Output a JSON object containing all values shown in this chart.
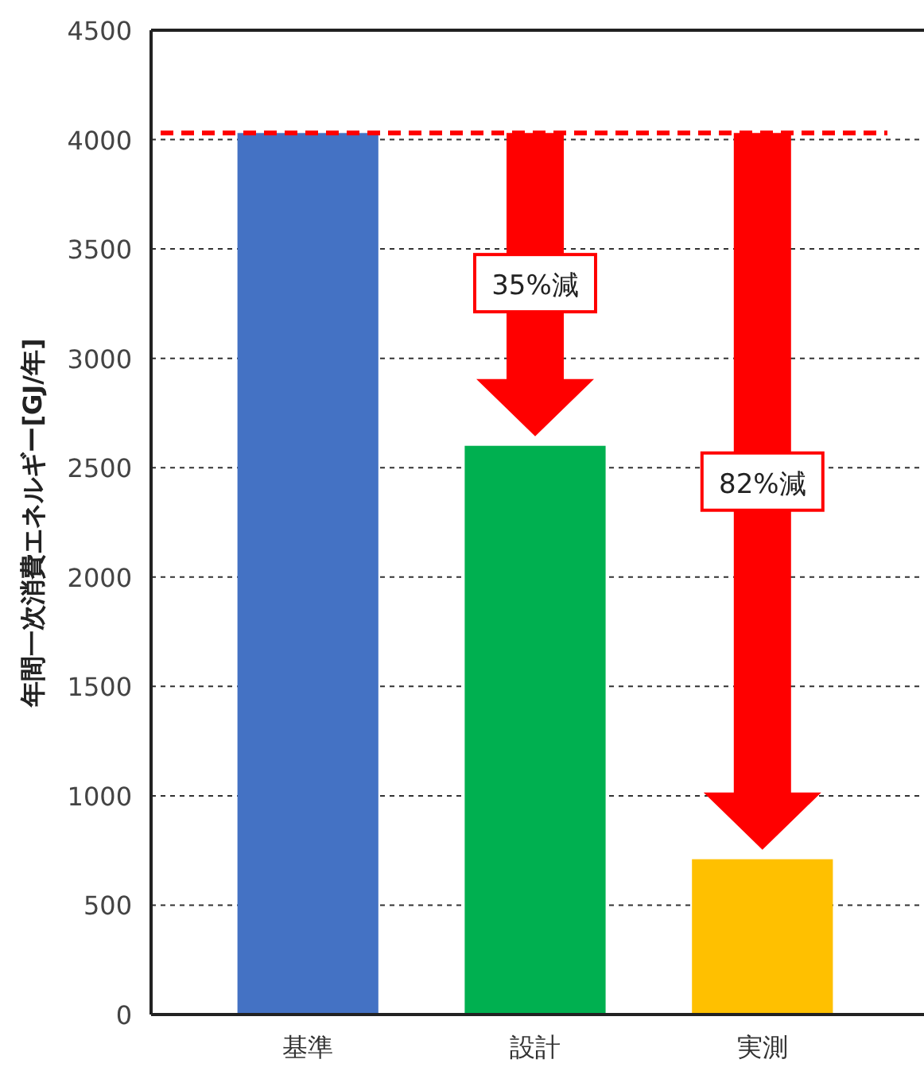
{
  "chart_data": {
    "type": "bar",
    "ylabel": "年間一次消費エネルギー[GJ/年]",
    "categories": [
      "基準",
      "設計",
      "実測"
    ],
    "values": [
      4030,
      2600,
      710
    ],
    "colors": [
      "#4472c4",
      "#00b050",
      "#ffc000"
    ],
    "ylim": [
      0,
      4500
    ],
    "yticks": [
      0,
      500,
      1000,
      1500,
      2000,
      2500,
      3000,
      3500,
      4000,
      4500
    ],
    "grid": "y",
    "ref_lines": [
      {
        "axis": "y",
        "value": 4030,
        "color": "#ff0000",
        "line_style": "dashed"
      }
    ],
    "annotations": [
      "35%減",
      "82%減"
    ]
  }
}
